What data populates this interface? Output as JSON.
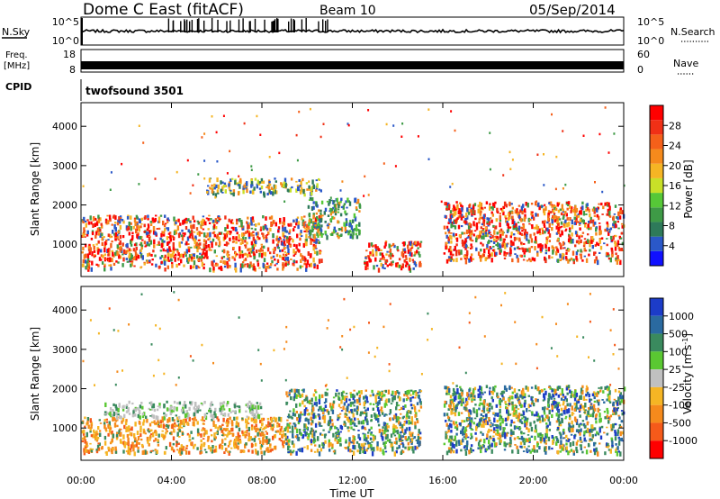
{
  "header": {
    "station": "Dome C East (fitACF)",
    "beam": "Beam 10",
    "date": "05/Sep/2014"
  },
  "sky_panel": {
    "label_left": "N.Sky",
    "label_right": "N.Search",
    "tick_top_left": "10^5",
    "tick_bottom_left": "10^0",
    "tick_top_right": "10^5",
    "tick_bottom_right": "10^0"
  },
  "freq_panel": {
    "label_left_1": "Freq.",
    "label_left_2": "[MHz]",
    "label_right": "Nave",
    "tick_top_left": "18",
    "tick_bottom_left": "8",
    "tick_top_right": "60",
    "tick_bottom_right": "0"
  },
  "cpid_panel": {
    "label": "CPID",
    "value": "twofsound 3501"
  },
  "chart_data": [
    {
      "type": "heatmap",
      "panel": "power",
      "ylabel": "Slant Range [km]",
      "xlabel": "",
      "xlim": [
        0,
        24
      ],
      "ylim": [
        180,
        4600
      ],
      "y_ticks": [
        "1000",
        "2000",
        "3000",
        "4000"
      ],
      "colorbar": {
        "label": "Power [dB]",
        "ticks": [
          "4",
          "8",
          "12",
          "16",
          "20",
          "24",
          "28"
        ],
        "colors": [
          "#1010ff",
          "#2a58c8",
          "#2e7a5a",
          "#3e9a46",
          "#56c837",
          "#c8e028",
          "#f5b524",
          "#f58a1c",
          "#f5601a",
          "#f03016",
          "#ff0000"
        ]
      },
      "scatter_bands": [
        {
          "start": 0.0,
          "end": 10.6,
          "min_range": 400,
          "max_range": 1750,
          "dominant": "red"
        },
        {
          "start": 5.5,
          "end": 10.6,
          "min_range": 2300,
          "max_range": 2700,
          "dominant": "orange"
        },
        {
          "start": 10.0,
          "end": 12.3,
          "min_range": 1200,
          "max_range": 2200,
          "dominant": "green"
        },
        {
          "start": 12.5,
          "end": 15.0,
          "min_range": 400,
          "max_range": 1100,
          "dominant": "red"
        },
        {
          "start": 16.0,
          "end": 24.0,
          "min_range": 600,
          "max_range": 2100,
          "dominant": "red"
        }
      ]
    },
    {
      "type": "heatmap",
      "panel": "velocity",
      "ylabel": "Slant Range [km]",
      "xlabel": "Time UT",
      "xlim": [
        0,
        24
      ],
      "ylim": [
        180,
        4600
      ],
      "x_ticks": [
        "00:00",
        "04:00",
        "08:00",
        "12:00",
        "16:00",
        "20:00",
        "00:00"
      ],
      "y_ticks": [
        "1000",
        "2000",
        "3000",
        "4000"
      ],
      "colorbar": {
        "label": "Velocity [m s^-1]",
        "ticks": [
          "1000",
          "500",
          "100",
          "25",
          "-25",
          "-100",
          "-500",
          "-1000"
        ],
        "colors": [
          "#1c3cc8",
          "#2a6aa0",
          "#3a8a5e",
          "#5ac832",
          "#c0c0c0",
          "#f5b524",
          "#f58a1c",
          "#f55a1a",
          "#ff0000"
        ]
      },
      "scatter_bands": [
        {
          "start": 0.0,
          "end": 9.0,
          "min_range": 400,
          "max_range": 1300,
          "dominant": "orange"
        },
        {
          "start": 1.0,
          "end": 8.0,
          "min_range": 1300,
          "max_range": 1700,
          "dominant": "grey"
        },
        {
          "start": 9.0,
          "end": 15.0,
          "min_range": 400,
          "max_range": 2000,
          "dominant": "green"
        },
        {
          "start": 16.0,
          "end": 24.0,
          "min_range": 400,
          "max_range": 2100,
          "dominant": "green"
        }
      ]
    }
  ]
}
